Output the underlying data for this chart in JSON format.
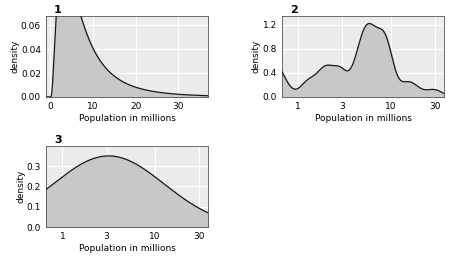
{
  "title1": "1",
  "title2": "2",
  "title3": "3",
  "xlabel": "Population in millions",
  "ylabel": "density",
  "fill_color": "#c8c8c8",
  "line_color": "#1a1a1a",
  "background_color": "#ffffff",
  "panel_bg": "#ebebeb",
  "grid_color": "#ffffff",
  "plot1": {
    "xlim": [
      -1,
      37
    ],
    "ylim": [
      0,
      0.068
    ],
    "yticks": [
      0.0,
      0.02,
      0.04,
      0.06
    ],
    "xticks": [
      0,
      10,
      20,
      30
    ]
  },
  "plot2": {
    "xlim_log": [
      -0.18,
      1.58
    ],
    "ylim": [
      0.0,
      1.35
    ],
    "yticks": [
      0.0,
      0.4,
      0.8,
      1.2
    ],
    "xticks_log": [
      0.0,
      0.4771,
      1.0,
      1.4771
    ],
    "xtick_labels": [
      "1",
      "3",
      "10",
      "30"
    ]
  },
  "plot3": {
    "xlim_log": [
      -0.18,
      1.58
    ],
    "ylim": [
      0.0,
      0.4
    ],
    "yticks": [
      0.0,
      0.1,
      0.2,
      0.3
    ],
    "xticks_log": [
      0.0,
      0.4771,
      1.0,
      1.4771
    ],
    "xtick_labels": [
      "1",
      "3",
      "10",
      "30"
    ]
  }
}
